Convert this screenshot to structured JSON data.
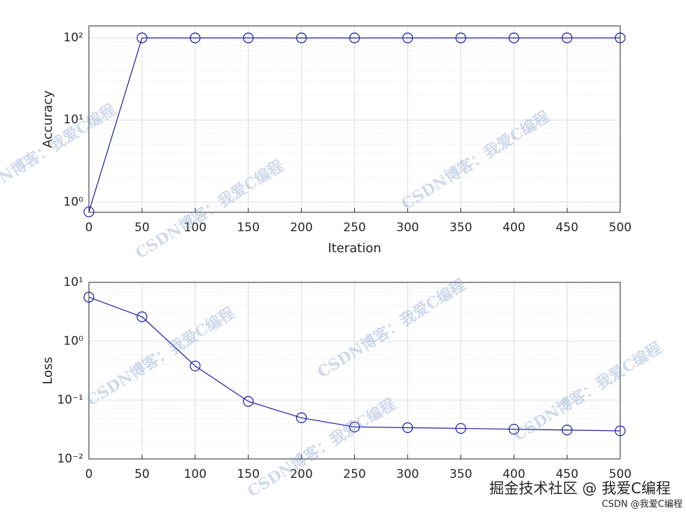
{
  "chart_data": [
    {
      "type": "line",
      "ylabel": "Accuracy",
      "xlabel": "Iteration",
      "x": [
        0,
        50,
        100,
        150,
        200,
        250,
        300,
        350,
        400,
        450,
        500
      ],
      "values": [
        0.76,
        100,
        100,
        100,
        100,
        100,
        100,
        100,
        100,
        100,
        100
      ],
      "color": "#1a1aa6",
      "log_y": true,
      "grid": true,
      "minor_grid": true,
      "xlim": [
        0,
        500
      ],
      "xticks": [
        0,
        50,
        100,
        150,
        200,
        250,
        300,
        350,
        400,
        450,
        500
      ],
      "ylim": [
        0.75,
        140
      ],
      "yticks": [
        {
          "value": 1,
          "label": "10⁰"
        },
        {
          "value": 10,
          "label": "10¹"
        },
        {
          "value": 100,
          "label": "10²"
        }
      ]
    },
    {
      "type": "line",
      "ylabel": "Loss",
      "x": [
        0,
        50,
        100,
        150,
        200,
        250,
        300,
        350,
        400,
        450,
        500
      ],
      "values": [
        5.6,
        2.6,
        0.38,
        0.095,
        0.05,
        0.035,
        0.034,
        0.033,
        0.032,
        0.031,
        0.03
      ],
      "color": "#1a1aa6",
      "log_y": true,
      "grid": true,
      "minor_grid": true,
      "xlim": [
        0,
        500
      ],
      "xticks": [
        0,
        50,
        100,
        150,
        200,
        250,
        300,
        350,
        400,
        450,
        500
      ],
      "ylim": [
        0.01,
        10
      ],
      "yticks": [
        {
          "value": 0.01,
          "label": "10⁻²"
        },
        {
          "value": 0.1,
          "label": "10⁻¹"
        },
        {
          "value": 1,
          "label": "10⁰"
        },
        {
          "value": 10,
          "label": "10¹"
        }
      ]
    }
  ],
  "watermark": "CSDN博客：我爱C编程",
  "footer": "掘金技术社区 @ 我爱C编程",
  "footer_small": "CSDN @我爱C编程"
}
